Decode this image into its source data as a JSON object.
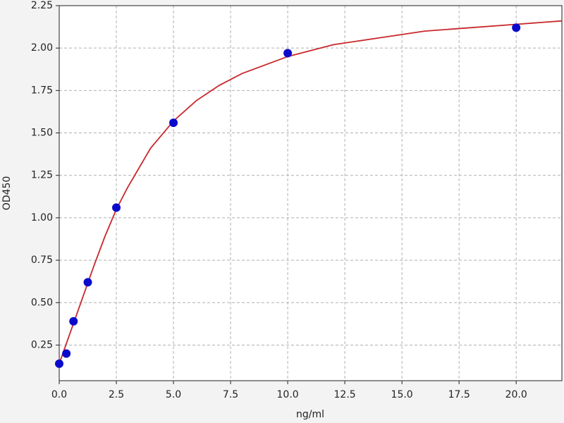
{
  "chart_data": {
    "type": "scatter",
    "xlabel": "ng/ml",
    "ylabel": "OD450",
    "points": {
      "color": "#0a0acc",
      "x": [
        0,
        0.3125,
        0.625,
        1.25,
        2.5,
        5,
        10,
        20
      ],
      "values": [
        0.14,
        0.2,
        0.39,
        0.62,
        1.06,
        1.56,
        1.97,
        2.12
      ]
    },
    "fit": {
      "color": "#c8282d",
      "x": [
        0,
        0.5,
        1,
        1.5,
        2,
        2.5,
        3,
        4,
        5,
        6,
        7,
        8,
        10,
        12,
        14,
        16,
        18,
        20,
        22
      ],
      "values": [
        0.14,
        0.33,
        0.52,
        0.71,
        0.89,
        1.05,
        1.18,
        1.41,
        1.57,
        1.69,
        1.78,
        1.85,
        1.95,
        2.02,
        2.06,
        2.1,
        2.12,
        2.14,
        2.16
      ]
    },
    "xlim": [
      0,
      22
    ],
    "ylim": [
      0.04,
      2.25
    ],
    "xticks": [
      {
        "value": 0,
        "label": "0.0"
      },
      2.5,
      {
        "value": 5,
        "label": "5.0"
      },
      7.5,
      {
        "value": 10,
        "label": "10.0"
      },
      12.5,
      {
        "value": 15,
        "label": "15.0"
      },
      17.5,
      {
        "value": 20,
        "label": "20.0"
      }
    ],
    "yticks": [
      0.25,
      {
        "value": 0.5,
        "label": "0.50"
      },
      0.75,
      {
        "value": 1,
        "label": "1.00"
      },
      1.25,
      {
        "value": 1.5,
        "label": "1.50"
      },
      1.75,
      {
        "value": 2,
        "label": "2.00"
      },
      2.25
    ],
    "grid": true
  }
}
